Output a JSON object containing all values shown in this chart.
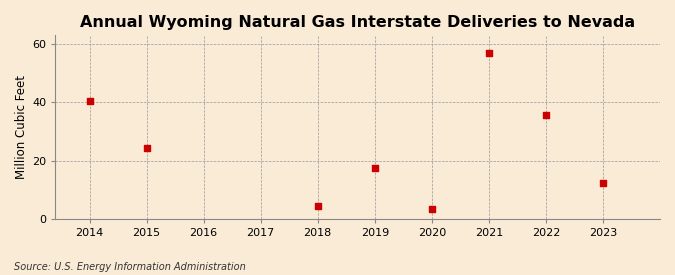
{
  "title": "Annual Wyoming Natural Gas Interstate Deliveries to Nevada",
  "ylabel": "Million Cubic Feet",
  "source": "Source: U.S. Energy Information Administration",
  "x_years": [
    2014,
    2015,
    2018,
    2019,
    2020,
    2021,
    2022,
    2023
  ],
  "y_values": [
    40.5,
    24.5,
    4.5,
    17.5,
    3.5,
    57.0,
    35.5,
    12.5
  ],
  "xlim": [
    2013.4,
    2024.0
  ],
  "ylim": [
    0,
    63
  ],
  "yticks": [
    0,
    20,
    40,
    60
  ],
  "xticks": [
    2014,
    2015,
    2016,
    2017,
    2018,
    2019,
    2020,
    2021,
    2022,
    2023
  ],
  "marker_color": "#cc0000",
  "marker_size": 18,
  "background_color": "#faebd7",
  "grid_color": "#999999",
  "title_fontsize": 11.5,
  "axis_label_fontsize": 8.5,
  "tick_fontsize": 8,
  "source_fontsize": 7
}
